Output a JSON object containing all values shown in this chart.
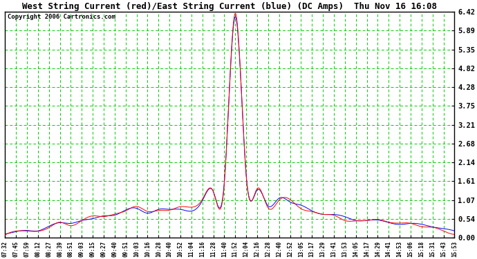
{
  "title": "West String Current (red)/East String Current (blue) (DC Amps)  Thu Nov 16 16:08",
  "copyright": "Copyright 2006 Cartronics.com",
  "background_color": "#ffffff",
  "plot_bg_color": "#ffffff",
  "grid_color": "#00cc00",
  "title_color": "#000000",
  "tick_label_color": "#000000",
  "border_color": "#000000",
  "x_tick_labels": [
    "07:32",
    "07:45",
    "07:59",
    "08:12",
    "08:27",
    "08:39",
    "08:51",
    "09:03",
    "09:15",
    "09:27",
    "09:40",
    "09:51",
    "10:03",
    "10:16",
    "10:28",
    "10:40",
    "10:52",
    "11:04",
    "11:16",
    "11:28",
    "11:40",
    "11:52",
    "12:04",
    "12:16",
    "12:28",
    "12:40",
    "12:52",
    "13:05",
    "13:17",
    "13:29",
    "13:41",
    "13:53",
    "14:05",
    "14:17",
    "14:29",
    "14:41",
    "14:53",
    "15:06",
    "15:18",
    "15:31",
    "15:43",
    "15:53"
  ],
  "y_ticks": [
    0.0,
    0.54,
    1.07,
    1.61,
    2.14,
    2.68,
    3.21,
    3.75,
    4.28,
    4.82,
    5.35,
    5.89,
    6.42
  ],
  "ylim": [
    0.0,
    6.42
  ],
  "line_color_red": "#ff0000",
  "line_color_blue": "#0000ff",
  "linewidth": 0.7
}
